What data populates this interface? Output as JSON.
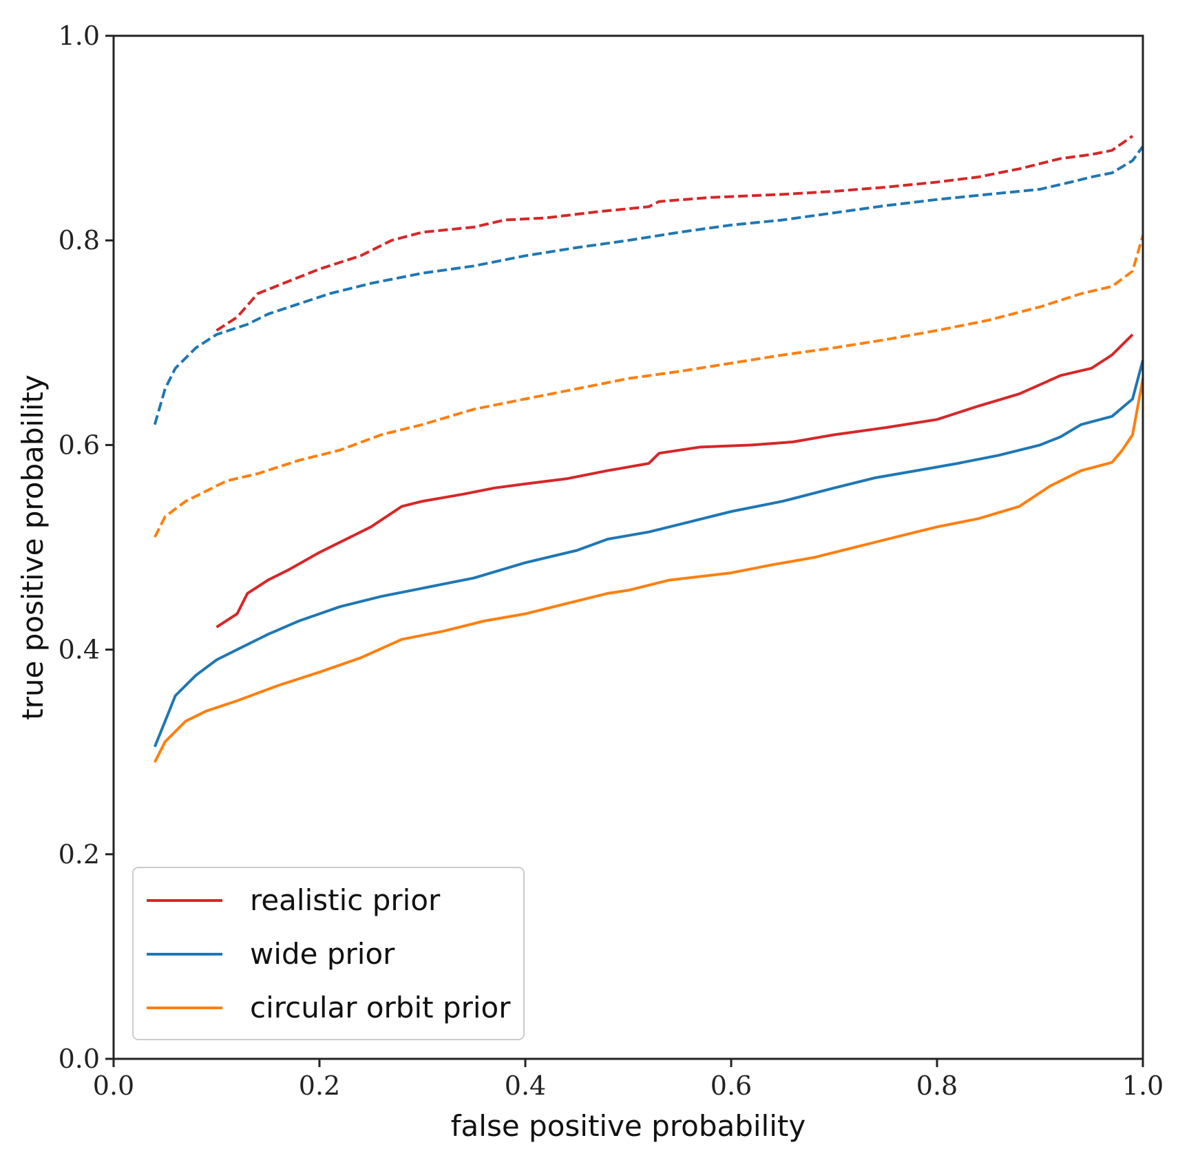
{
  "chart_data": {
    "type": "line",
    "title": "",
    "xlabel": "false positive probability",
    "ylabel": "true positive probability",
    "xlim": [
      0,
      1
    ],
    "ylim": [
      0,
      1
    ],
    "xticks": [
      "0.0",
      "0.2",
      "0.4",
      "0.6",
      "0.8",
      "1.0"
    ],
    "yticks": [
      "0.0",
      "0.2",
      "0.4",
      "0.6",
      "0.8",
      "1.0"
    ],
    "grid": false,
    "legend": {
      "location": "lower-left",
      "entries": [
        "realistic prior",
        "wide prior",
        "circular orbit prior"
      ]
    },
    "series": [
      {
        "name": "realistic prior",
        "style": "solid",
        "color": "#d62728",
        "x": [
          0.1,
          0.12,
          0.13,
          0.15,
          0.17,
          0.2,
          0.22,
          0.25,
          0.28,
          0.3,
          0.34,
          0.37,
          0.4,
          0.44,
          0.48,
          0.52,
          0.53,
          0.57,
          0.62,
          0.66,
          0.7,
          0.75,
          0.8,
          0.84,
          0.88,
          0.92,
          0.95,
          0.97,
          0.99
        ],
        "y": [
          0.422,
          0.435,
          0.455,
          0.468,
          0.478,
          0.495,
          0.505,
          0.52,
          0.54,
          0.545,
          0.552,
          0.558,
          0.562,
          0.567,
          0.575,
          0.582,
          0.592,
          0.598,
          0.6,
          0.603,
          0.61,
          0.617,
          0.625,
          0.638,
          0.65,
          0.668,
          0.675,
          0.688,
          0.708
        ]
      },
      {
        "name": "wide prior",
        "style": "solid",
        "color": "#1f77b4",
        "x": [
          0.04,
          0.05,
          0.06,
          0.08,
          0.1,
          0.12,
          0.15,
          0.18,
          0.22,
          0.26,
          0.3,
          0.35,
          0.4,
          0.45,
          0.48,
          0.52,
          0.56,
          0.6,
          0.65,
          0.7,
          0.74,
          0.78,
          0.82,
          0.86,
          0.9,
          0.92,
          0.94,
          0.97,
          0.99,
          1.0
        ],
        "y": [
          0.305,
          0.33,
          0.355,
          0.375,
          0.39,
          0.4,
          0.415,
          0.428,
          0.442,
          0.452,
          0.46,
          0.47,
          0.485,
          0.497,
          0.508,
          0.515,
          0.525,
          0.535,
          0.545,
          0.558,
          0.568,
          0.575,
          0.582,
          0.59,
          0.6,
          0.608,
          0.62,
          0.628,
          0.645,
          0.683
        ]
      },
      {
        "name": "circular orbit prior",
        "style": "solid",
        "color": "#ff7f0e",
        "x": [
          0.04,
          0.05,
          0.07,
          0.09,
          0.12,
          0.16,
          0.2,
          0.24,
          0.28,
          0.32,
          0.36,
          0.4,
          0.44,
          0.48,
          0.5,
          0.54,
          0.6,
          0.64,
          0.68,
          0.72,
          0.76,
          0.8,
          0.84,
          0.88,
          0.91,
          0.94,
          0.97,
          0.98,
          0.99,
          1.0
        ],
        "y": [
          0.29,
          0.31,
          0.33,
          0.34,
          0.35,
          0.365,
          0.378,
          0.392,
          0.41,
          0.418,
          0.428,
          0.435,
          0.445,
          0.455,
          0.458,
          0.468,
          0.475,
          0.483,
          0.49,
          0.5,
          0.51,
          0.52,
          0.528,
          0.54,
          0.56,
          0.575,
          0.583,
          0.595,
          0.61,
          0.665
        ]
      },
      {
        "name": "realistic prior (dashed)",
        "style": "dashed",
        "color": "#d62728",
        "x": [
          0.1,
          0.12,
          0.14,
          0.17,
          0.2,
          0.24,
          0.27,
          0.3,
          0.35,
          0.38,
          0.42,
          0.47,
          0.52,
          0.53,
          0.58,
          0.65,
          0.7,
          0.75,
          0.8,
          0.84,
          0.88,
          0.92,
          0.95,
          0.97,
          0.99
        ],
        "y": [
          0.712,
          0.725,
          0.748,
          0.76,
          0.772,
          0.785,
          0.8,
          0.808,
          0.813,
          0.82,
          0.822,
          0.828,
          0.833,
          0.838,
          0.842,
          0.845,
          0.848,
          0.852,
          0.857,
          0.862,
          0.87,
          0.88,
          0.884,
          0.888,
          0.902
        ]
      },
      {
        "name": "wide prior (dashed)",
        "style": "dashed",
        "color": "#1f77b4",
        "x": [
          0.04,
          0.05,
          0.06,
          0.08,
          0.1,
          0.13,
          0.15,
          0.18,
          0.21,
          0.25,
          0.3,
          0.35,
          0.4,
          0.45,
          0.5,
          0.55,
          0.6,
          0.65,
          0.7,
          0.75,
          0.8,
          0.85,
          0.9,
          0.93,
          0.95,
          0.97,
          0.99,
          1.0
        ],
        "y": [
          0.62,
          0.655,
          0.675,
          0.695,
          0.708,
          0.718,
          0.728,
          0.738,
          0.748,
          0.758,
          0.768,
          0.775,
          0.785,
          0.793,
          0.8,
          0.808,
          0.815,
          0.82,
          0.827,
          0.834,
          0.84,
          0.845,
          0.85,
          0.857,
          0.862,
          0.866,
          0.878,
          0.892
        ]
      },
      {
        "name": "circular orbit prior (dashed)",
        "style": "dashed",
        "color": "#ff7f0e",
        "x": [
          0.04,
          0.05,
          0.07,
          0.09,
          0.11,
          0.14,
          0.18,
          0.22,
          0.26,
          0.3,
          0.35,
          0.4,
          0.45,
          0.5,
          0.55,
          0.6,
          0.65,
          0.7,
          0.75,
          0.8,
          0.85,
          0.9,
          0.94,
          0.97,
          0.99,
          1.0
        ],
        "y": [
          0.51,
          0.53,
          0.545,
          0.555,
          0.565,
          0.572,
          0.585,
          0.595,
          0.61,
          0.62,
          0.635,
          0.645,
          0.655,
          0.665,
          0.672,
          0.68,
          0.688,
          0.695,
          0.703,
          0.712,
          0.722,
          0.735,
          0.748,
          0.755,
          0.77,
          0.805
        ]
      }
    ]
  }
}
